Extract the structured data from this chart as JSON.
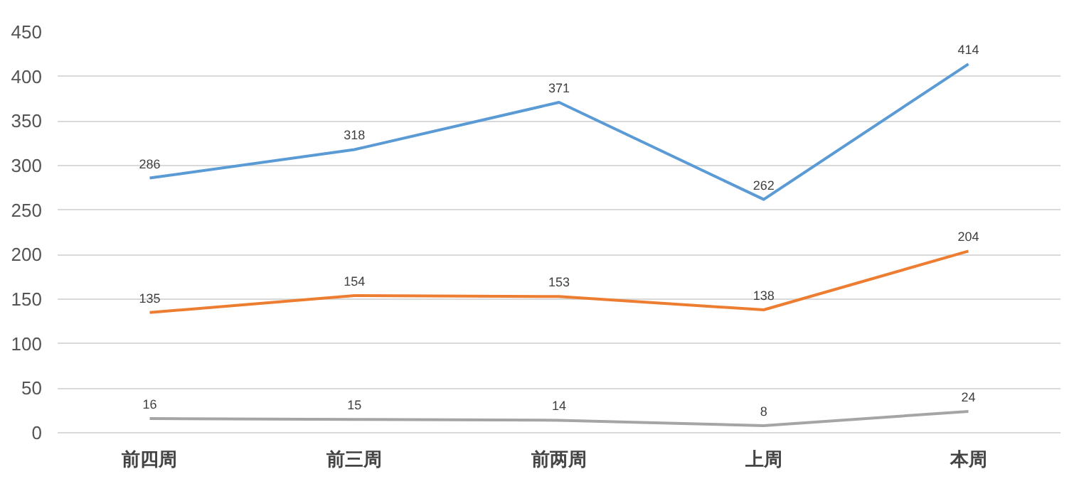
{
  "chart_data": {
    "type": "line",
    "categories": [
      "前四周",
      "前三周",
      "前两周",
      "上周",
      "本周"
    ],
    "series": [
      {
        "color": "#5b9bd5",
        "values": [
          286,
          318,
          371,
          262,
          414
        ]
      },
      {
        "color": "#ed7d31",
        "values": [
          135,
          154,
          153,
          138,
          204
        ]
      },
      {
        "color": "#a5a5a5",
        "values": [
          16,
          15,
          14,
          8,
          24
        ]
      }
    ],
    "ylim": [
      0,
      450
    ],
    "yticks": [
      0,
      50,
      100,
      150,
      200,
      250,
      300,
      350,
      400,
      450
    ],
    "grid": "y",
    "data_labels": true,
    "marker": "none",
    "line_style": "solid"
  }
}
